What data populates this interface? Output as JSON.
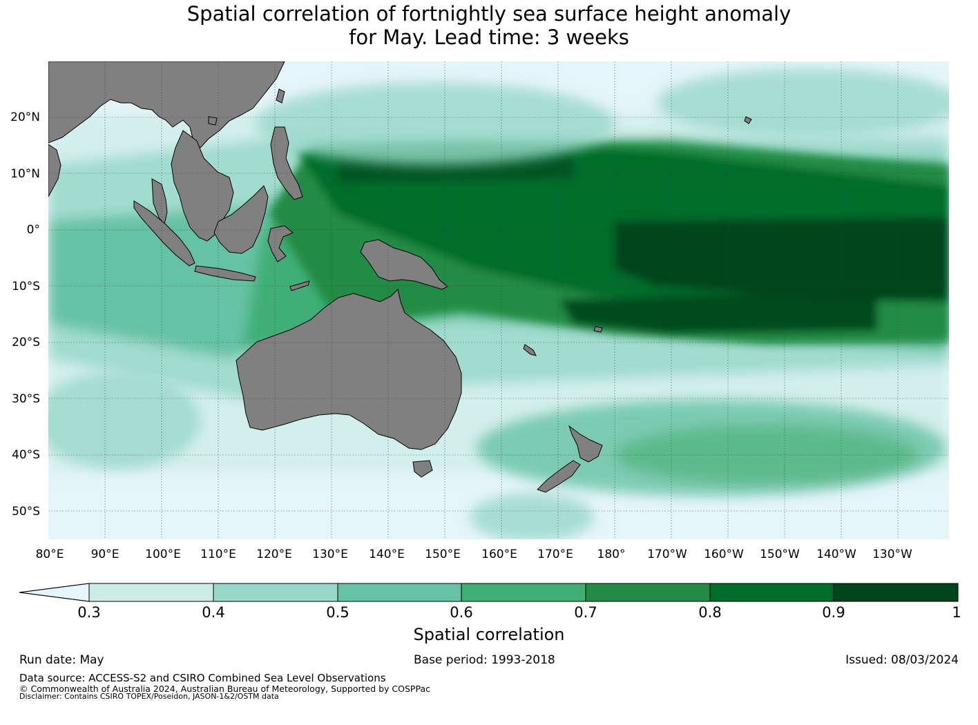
{
  "title": {
    "line1": "Spatial correlation of fortnightly sea surface height anomaly",
    "line2": "for May. Lead time: 3 weeks"
  },
  "map": {
    "land_color": "#808080",
    "ocean_color": "#e5f5f9",
    "lat_labels": [
      "20°N",
      "10°N",
      "0°",
      "10°S",
      "20°S",
      "30°S",
      "40°S",
      "50°S"
    ],
    "lon_labels": [
      "80°E",
      "90°E",
      "100°E",
      "110°E",
      "120°E",
      "130°E",
      "140°E",
      "150°E",
      "160°E",
      "170°E",
      "180°",
      "170°W",
      "160°W",
      "150°W",
      "140°W",
      "130°W"
    ]
  },
  "colorbar": {
    "label": "Spatial correlation",
    "ticks": [
      "0.3",
      "0.4",
      "0.5",
      "0.6",
      "0.7",
      "0.8",
      "0.9",
      "1"
    ],
    "extend_color": "#e5f5f9",
    "colors": [
      "#ccece6",
      "#99d8c9",
      "#66c2a4",
      "#41ae76",
      "#238b45",
      "#006d2c",
      "#00441b"
    ]
  },
  "footer": {
    "run_date": "Run date: May",
    "base_period": "Base period: 1993-2018",
    "issued": "Issued: 08/03/2024",
    "data_source": "Data source: ACCESS-S2 and CSIRO Combined Sea Level Observations",
    "copyright": "© Commonwealth of Australia 2024, Australian Bureau of Meteorology, Supported by COSPPac",
    "disclaimer": "Disclaimer: Contains CSIRO TOPEX/Poseidon, JASON-1&2/OSTM data"
  }
}
